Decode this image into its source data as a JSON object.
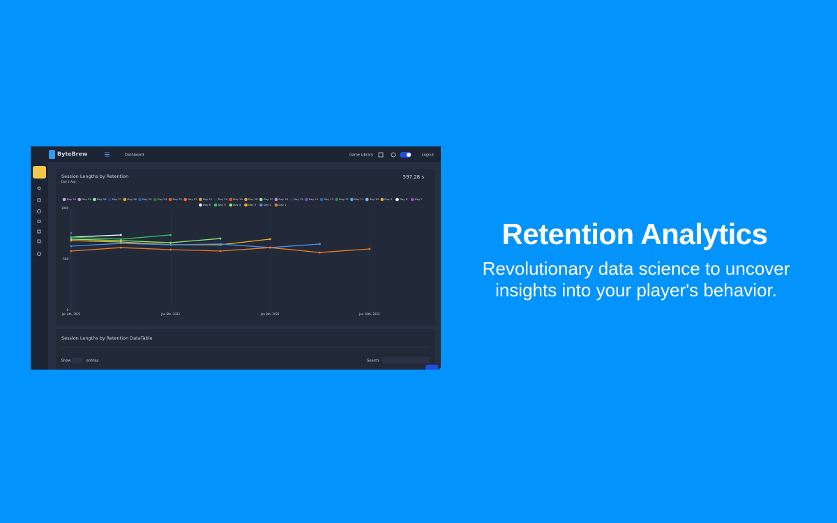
{
  "hero": {
    "title": "Retention Analytics",
    "subtitle": "Revolutionary data science to uncover insights into your player's behavior."
  },
  "app": {
    "brand": "ByteBrew",
    "nav": {
      "dashboard": "Dashboard",
      "game_library": "Game Library",
      "logout": "Logout"
    },
    "chart_card": {
      "title": "Session Lengths by Retention",
      "subtitle": "Day 1 Avg",
      "stat": "597.28 s"
    },
    "table_card": {
      "title": "Session Lengths by Retention DataTable",
      "show": "Show",
      "entries": "entries",
      "search": "Search:"
    }
  },
  "chart_data": {
    "type": "line",
    "x": [
      "Jan 4th, 2022",
      null,
      "Jan 6th, 2022",
      null,
      "Jan 8th, 2022",
      null,
      "Jan 10th, 2022"
    ],
    "ylim": [
      0,
      1000
    ],
    "yticks": [
      0,
      500,
      1000
    ],
    "series": [
      {
        "name": "Day 30",
        "color": "#d6a6e6",
        "values": [
          null,
          null,
          null,
          null,
          null,
          null,
          null
        ]
      },
      {
        "name": "Day 29",
        "color": "#b99ad0",
        "values": [
          null,
          null,
          null,
          null,
          null,
          null,
          null
        ]
      },
      {
        "name": "Day 28",
        "color": "#a6e8b4",
        "values": [
          null,
          null,
          null,
          null,
          null,
          null,
          null
        ]
      },
      {
        "name": "Day 27",
        "color": "#1f3b8c",
        "values": [
          null,
          null,
          null,
          null,
          null,
          null,
          null
        ]
      },
      {
        "name": "Day 26",
        "color": "#f5a623",
        "values": [
          null,
          null,
          null,
          null,
          null,
          null,
          null
        ]
      },
      {
        "name": "Day 25",
        "color": "#2a55c0",
        "values": [
          null,
          null,
          null,
          null,
          null,
          null,
          null
        ]
      },
      {
        "name": "Day 24",
        "color": "#1e7a3a",
        "values": [
          null,
          null,
          null,
          null,
          null,
          null,
          null
        ]
      },
      {
        "name": "Day 23",
        "color": "#e8601c",
        "values": [
          null,
          null,
          null,
          null,
          null,
          null,
          null
        ]
      },
      {
        "name": "Day 22",
        "color": "#f07020",
        "values": [
          null,
          null,
          null,
          null,
          null,
          null,
          null
        ]
      },
      {
        "name": "Day 21",
        "color": "#f5a020",
        "values": [
          null,
          null,
          null,
          null,
          null,
          null,
          null
        ]
      },
      {
        "name": "Day 20",
        "color": "#2a3550",
        "values": [
          null,
          null,
          null,
          null,
          null,
          null,
          null
        ]
      },
      {
        "name": "Day 19",
        "color": "#e85a1a",
        "values": [
          null,
          null,
          null,
          null,
          null,
          null,
          null
        ]
      },
      {
        "name": "Day 18",
        "color": "#f59a3a",
        "values": [
          null,
          null,
          null,
          null,
          null,
          null,
          null
        ]
      },
      {
        "name": "Day 17",
        "color": "#8ee89a",
        "values": [
          null,
          null,
          null,
          null,
          null,
          null,
          null
        ]
      },
      {
        "name": "Day 16",
        "color": "#b98ce0",
        "values": [
          null,
          null,
          null,
          null,
          null,
          null,
          null
        ]
      },
      {
        "name": "Day 15",
        "color": "#2a3550",
        "values": [
          null,
          null,
          null,
          null,
          null,
          null,
          null
        ]
      },
      {
        "name": "Day 14",
        "color": "#6a50b0",
        "values": [
          null,
          null,
          null,
          null,
          null,
          null,
          null
        ]
      },
      {
        "name": "Day 13",
        "color": "#2a60c8",
        "values": [
          null,
          null,
          null,
          null,
          null,
          null,
          null
        ]
      },
      {
        "name": "Day 12",
        "color": "#2a8a4a",
        "values": [
          null,
          null,
          null,
          null,
          null,
          null,
          null
        ]
      },
      {
        "name": "Day 11",
        "color": "#5aa0e8",
        "values": [
          null,
          null,
          null,
          null,
          null,
          null,
          null
        ]
      },
      {
        "name": "Day 10",
        "color": "#8ac0f0",
        "values": [
          null,
          null,
          null,
          null,
          null,
          null,
          null
        ]
      },
      {
        "name": "Day 9",
        "color": "#f5a030",
        "values": [
          null,
          null,
          null,
          null,
          null,
          null,
          null
        ]
      },
      {
        "name": "Day 8",
        "color": "#ffffff",
        "values": [
          null,
          null,
          null,
          null,
          null,
          null,
          null
        ]
      },
      {
        "name": "Day 7",
        "color": "#8855cc",
        "values": [
          760,
          null,
          null,
          null,
          null,
          null,
          null
        ]
      },
      {
        "name": "Day 6",
        "color": "#e8f8f0",
        "values": [
          719,
          740,
          null,
          null,
          null,
          null,
          null
        ]
      },
      {
        "name": "Day 5",
        "color": "#3ac060",
        "values": [
          719,
          699,
          740,
          null,
          null,
          null,
          null
        ]
      },
      {
        "name": "Day 4",
        "color": "#90e870",
        "values": [
          699,
          685,
          664,
          705,
          null,
          null,
          null
        ]
      },
      {
        "name": "Day 3",
        "color": "#f5b020",
        "values": [
          685,
          671,
          644,
          644,
          699,
          null,
          null
        ]
      },
      {
        "name": "Day 2",
        "color": "#4a90e8",
        "values": [
          630,
          658,
          644,
          651,
          616,
          651,
          null
        ]
      },
      {
        "name": "Day 1",
        "color": "#f07a20",
        "values": [
          582,
          616,
          596,
          582,
          616,
          568,
          603
        ]
      }
    ]
  }
}
